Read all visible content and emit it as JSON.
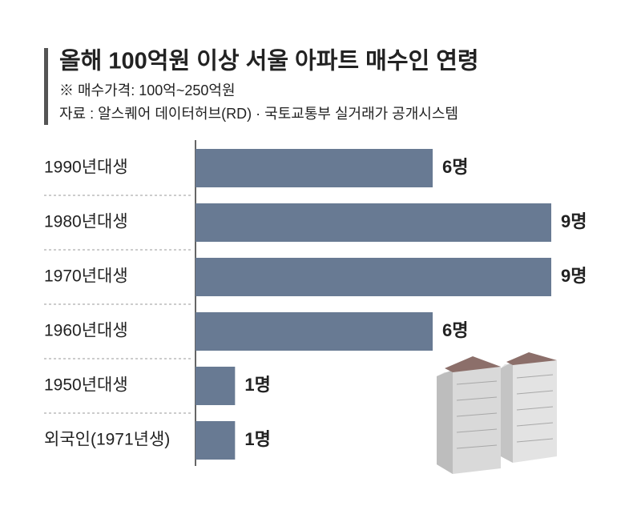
{
  "chart_data": {
    "type": "bar",
    "orientation": "horizontal",
    "title": "올해 100억원 이상 서울 아파트 매수인 연령",
    "subtitle": [
      "※ 매수가격: 100억~250억원",
      "자료 : 알스퀘어 데이터허브(RD) · 국토교통부 실거래가 공개시스템"
    ],
    "categories": [
      "1990년대생",
      "1980년대생",
      "1970년대생",
      "1960년대생",
      "1950년대생",
      "외국인(1971년생)"
    ],
    "values": [
      6,
      9,
      9,
      6,
      1,
      1
    ],
    "value_labels": [
      "6명",
      "9명",
      "9명",
      "6명",
      "1명",
      "1명"
    ],
    "color": "#687a93"
  }
}
